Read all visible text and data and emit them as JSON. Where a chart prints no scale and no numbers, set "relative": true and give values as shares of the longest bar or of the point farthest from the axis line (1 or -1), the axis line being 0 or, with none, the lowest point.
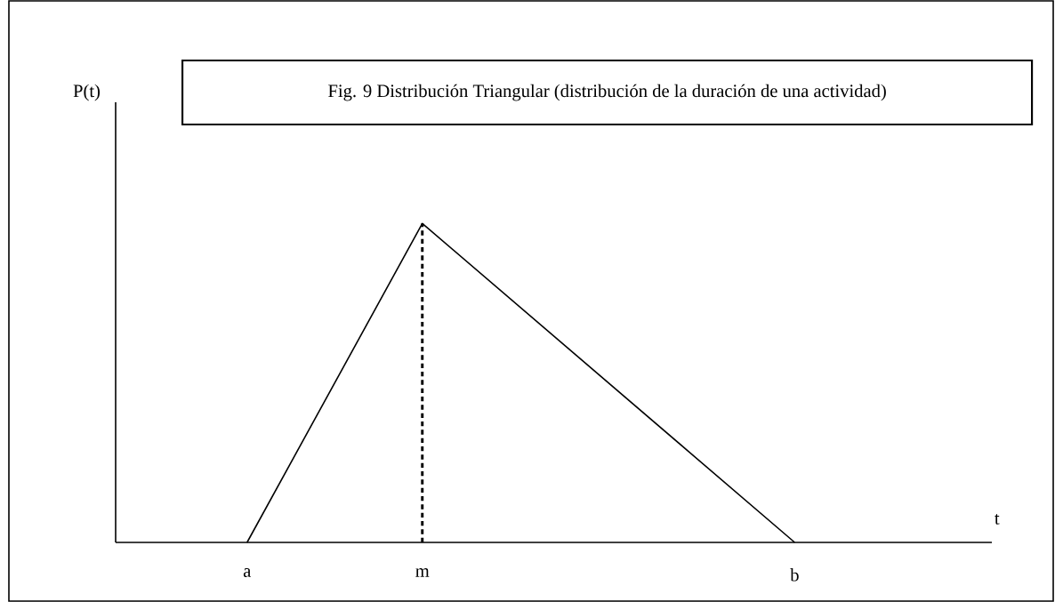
{
  "chart_data": {
    "type": "line",
    "title": "Fig. 9 Distribución Triangular (distribución de la duración  de una actividad)",
    "xlabel": "t",
    "annotations": [
      "P(t)"
    ],
    "relative": true,
    "categories": [
      null,
      null,
      null,
      null,
      null,
      null,
      "a",
      null,
      null,
      null,
      null,
      null,
      null,
      null,
      "m",
      null,
      null,
      null,
      null,
      null,
      null,
      null,
      null,
      null,
      null,
      null,
      null,
      null,
      null,
      null,
      null,
      "b",
      null,
      null,
      null,
      null,
      null,
      null,
      null,
      null,
      null
    ],
    "series": [
      {
        "values": [
          null,
          null,
          null,
          null,
          null,
          null,
          0,
          null,
          null,
          null,
          null,
          null,
          null,
          null,
          1,
          null,
          null,
          null,
          null,
          null,
          null,
          null,
          null,
          null,
          null,
          null,
          null,
          null,
          null,
          null,
          null,
          0,
          null,
          null,
          null,
          null,
          null,
          null,
          null,
          null,
          null
        ],
        "color": "#000000"
      }
    ],
    "ref_lines": [
      {
        "axis": "x",
        "value": "m",
        "color": "#000000",
        "line_style": "dashed"
      }
    ]
  }
}
